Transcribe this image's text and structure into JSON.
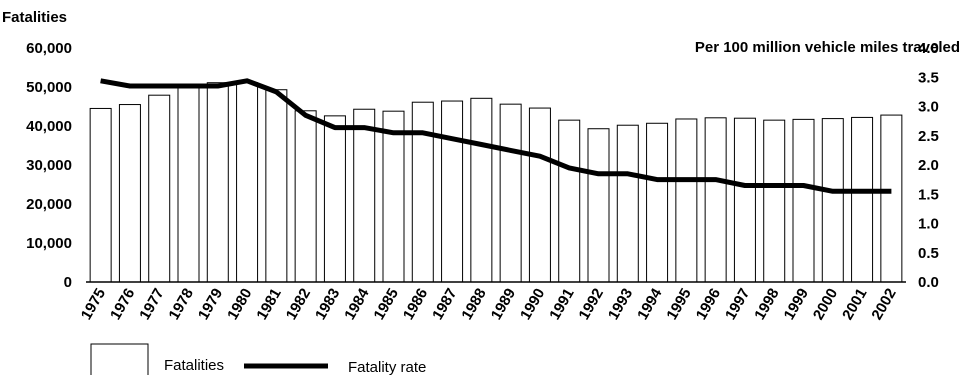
{
  "chart_data": {
    "type": "bar",
    "title": "",
    "x": [
      "1975",
      "1976",
      "1977",
      "1978",
      "1979",
      "1980",
      "1981",
      "1982",
      "1983",
      "1984",
      "1985",
      "1986",
      "1987",
      "1988",
      "1989",
      "1990",
      "1991",
      "1992",
      "1993",
      "1994",
      "1995",
      "1996",
      "1997",
      "1998",
      "1999",
      "2000",
      "2001",
      "2002"
    ],
    "left_axis": {
      "label": "Fatalities",
      "ylim": [
        0,
        60000
      ],
      "ticks": [
        "0",
        "10,000",
        "20,000",
        "30,000",
        "40,000",
        "50,000",
        "60,000"
      ]
    },
    "right_axis": {
      "label": "Per 100 million vehicle miles traveled",
      "ylim": [
        0,
        4.0
      ],
      "ticks": [
        "0.0",
        "0.5",
        "1.0",
        "1.5",
        "2.0",
        "2.5",
        "3.0",
        "3.5",
        "4.0"
      ]
    },
    "series": [
      {
        "name": "Fatalities",
        "type": "bar",
        "axis": "left",
        "color": "#ffffff",
        "values": [
          44500,
          45500,
          47900,
          50300,
          51100,
          51100,
          49300,
          43900,
          42600,
          44300,
          43800,
          46100,
          46400,
          47100,
          45600,
          44600,
          41500,
          39300,
          40200,
          40700,
          41800,
          42100,
          42000,
          41500,
          41700,
          41900,
          42200,
          42800
        ]
      },
      {
        "name": "Fatality rate",
        "type": "line",
        "axis": "right",
        "color": "#000000",
        "values": [
          3.44,
          3.35,
          3.35,
          3.35,
          3.35,
          3.44,
          3.25,
          2.85,
          2.64,
          2.64,
          2.55,
          2.55,
          2.45,
          2.35,
          2.25,
          2.15,
          1.95,
          1.85,
          1.85,
          1.75,
          1.75,
          1.75,
          1.65,
          1.65,
          1.65,
          1.55,
          1.55,
          1.55
        ]
      }
    ],
    "legend": {
      "position": "bottom-left",
      "items": [
        {
          "label": "Fatalities",
          "symbol": "bar"
        },
        {
          "label": "Fatality rate",
          "symbol": "line"
        }
      ]
    },
    "grid": false
  }
}
